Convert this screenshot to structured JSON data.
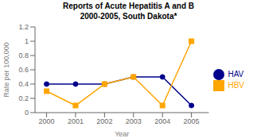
{
  "chart_data": {
    "type": "line",
    "title": "Reports of Acute Hepatitis A and B\n2000-2005, South Dakota*",
    "xlabel": "Year",
    "ylabel": "Rate per 100,000",
    "x": [
      2000,
      2001,
      2002,
      2003,
      2004,
      2005
    ],
    "series": [
      {
        "name": "HAV",
        "color": "#00008B",
        "marker": "circle",
        "values": [
          0.4,
          0.4,
          0.4,
          0.5,
          0.5,
          0.1
        ]
      },
      {
        "name": "HBV",
        "color": "#FFA500",
        "marker": "square",
        "values": [
          0.3,
          0.1,
          0.4,
          0.5,
          0.1,
          1.0
        ]
      }
    ],
    "xlim": [
      1999.6,
      2005.6
    ],
    "xticks": [
      2000,
      2001,
      2002,
      2003,
      2004,
      2005
    ],
    "ylim": [
      0,
      1.2
    ],
    "yticks": [
      0,
      0.2,
      0.4,
      0.6,
      0.8,
      1.0,
      1.2
    ],
    "grid": false,
    "legend": "right"
  }
}
